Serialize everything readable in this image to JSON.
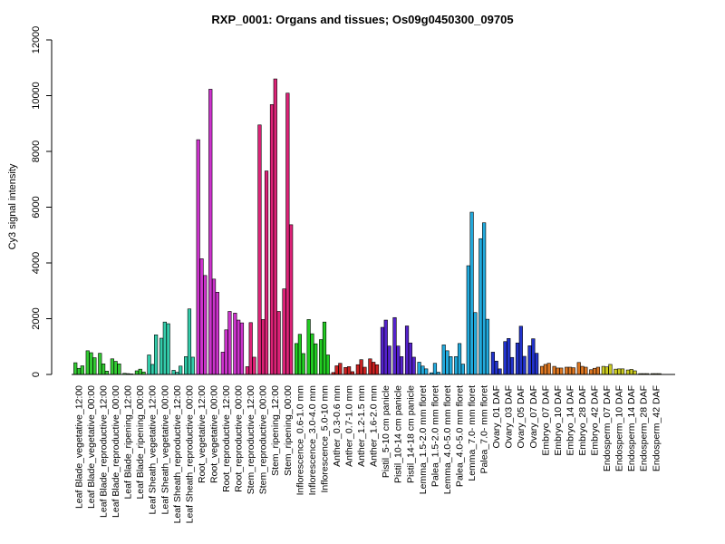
{
  "chart_data": {
    "type": "bar",
    "title": "RXP_0001: Organs and tissues; Os09g0450300_09705",
    "xlabel": "",
    "ylabel": "Cy3 signal intensity",
    "ylim": [
      0,
      12000
    ],
    "yticks": [
      0,
      2000,
      4000,
      6000,
      8000,
      10000,
      12000
    ],
    "grid": false,
    "category_labels": [
      "Leaf Blade_vegetative_12:00",
      "Leaf Blade_vegetative_00:00",
      "Leaf Blade_reproductive_12:00",
      "Leaf Blade_reproductive_00:00",
      "Leaf Blade_ripening_12:00",
      "Leaf Blade_ripening_00:00",
      "Leaf Sheath_vegetative_12:00",
      "Leaf Sheath_vegetative_00:00",
      "Leaf Sheath_reproductive_12:00",
      "Leaf Sheath_reproductive_00:00",
      "Root_vegetative_12:00",
      "Root_vegetative_00:00",
      "Root_reproductive_12:00",
      "Root_reproductive_00:00",
      "Stem_reproductive_12:00",
      "Stem_reproductive_00:00",
      "Stem_ripening_12:00",
      "Stem_ripening_00:00",
      "Inflorescence_0.6-1.0 mm",
      "Inflorescence_3.0-4.0 mm",
      "Inflorescence_5.0-10 mm",
      "Anther_0.3-0.6 mm",
      "Anther_0.7-1.0 mm",
      "Anther_1.2-1.5 mm",
      "Anther_1.6-2.0 mm",
      "Pistil_5-10 cm panicle",
      "Pistil_10-14 cm panicle",
      "Pistil_14-18 cm panicle",
      "Lemma_1.5-2.0 mm floret",
      "Palea_1.5-2.0 mm floret",
      "Lemma_4.0-5.0 mm floret",
      "Palea_4.0-5.0 mm floret",
      "Lemma_7.0- mm floret",
      "Palea_7.0- mm floret",
      "Ovary_01 DAF",
      "Ovary_03 DAF",
      "Ovary_05 DAF",
      "Ovary_07 DAF",
      "Embryo_07 DAF",
      "Embryo_10 DAF",
      "Embryo_14 DAF",
      "Embryo_28 DAF",
      "Embryo_42 DAF",
      "Endosperm_07 DAF",
      "Endosperm_10 DAF",
      "Endosperm_14 DAF",
      "Endosperm_28 DAF",
      "Endosperm_42 DAF"
    ],
    "bar_groups": [
      {
        "values": [
          420,
          220,
          310
        ],
        "color": "#33cc33"
      },
      {
        "values": [
          850,
          780,
          600
        ],
        "color": "#33cc33"
      },
      {
        "values": [
          760,
          380,
          120
        ],
        "color": "#33cc33"
      },
      {
        "values": [
          560,
          470,
          380
        ],
        "color": "#33cc33"
      },
      {
        "values": [
          40,
          30,
          20
        ],
        "color": "#33cc33"
      },
      {
        "values": [
          130,
          190,
          90
        ],
        "color": "#33cc33"
      },
      {
        "values": [
          700,
          360,
          1420
        ],
        "color": "#33ccaa"
      },
      {
        "values": [
          1300,
          1880,
          1820
        ],
        "color": "#33ccaa"
      },
      {
        "values": [
          150,
          80,
          300
        ],
        "color": "#33ccaa"
      },
      {
        "values": [
          640,
          2350,
          620
        ],
        "color": "#33ccaa"
      },
      {
        "values": [
          8420,
          4150,
          3550
        ],
        "color": "#cc33cc"
      },
      {
        "values": [
          10230,
          3420,
          2950
        ],
        "color": "#cc33cc"
      },
      {
        "values": [
          800,
          1600,
          2260
        ],
        "color": "#cc33cc"
      },
      {
        "values": [
          2200,
          1950,
          1850
        ],
        "color": "#cc33cc"
      },
      {
        "values": [
          280,
          1860,
          620
        ],
        "color": "#dd2277"
      },
      {
        "values": [
          8950,
          1970,
          7300
        ],
        "color": "#dd2277"
      },
      {
        "values": [
          9680,
          10600,
          2260
        ],
        "color": "#dd2277"
      },
      {
        "values": [
          3070,
          10090,
          5370
        ],
        "color": "#dd2277"
      },
      {
        "values": [
          1110,
          1440,
          750
        ],
        "color": "#22cc22"
      },
      {
        "values": [
          1970,
          1460,
          1100
        ],
        "color": "#22cc22"
      },
      {
        "values": [
          1250,
          1880,
          700
        ],
        "color": "#22cc22"
      },
      {
        "values": [
          70,
          310,
          400
        ],
        "color": "#cc2222"
      },
      {
        "values": [
          250,
          280,
          100
        ],
        "color": "#cc2222"
      },
      {
        "values": [
          350,
          530,
          260
        ],
        "color": "#cc2222"
      },
      {
        "values": [
          560,
          440,
          350
        ],
        "color": "#cc2222"
      },
      {
        "values": [
          1690,
          1950,
          1020
        ],
        "color": "#5522cc"
      },
      {
        "values": [
          2040,
          1020,
          640
        ],
        "color": "#5522cc"
      },
      {
        "values": [
          1740,
          1130,
          620
        ],
        "color": "#5522cc"
      },
      {
        "values": [
          440,
          300,
          200
        ],
        "color": "#22aadd"
      },
      {
        "values": [
          60,
          400,
          80
        ],
        "color": "#22aadd"
      },
      {
        "values": [
          1060,
          850,
          640
        ],
        "color": "#22aadd"
      },
      {
        "values": [
          640,
          1110,
          370
        ],
        "color": "#22aadd"
      },
      {
        "values": [
          3900,
          5820,
          2220
        ],
        "color": "#22aadd"
      },
      {
        "values": [
          4870,
          5440,
          1980
        ],
        "color": "#22aadd"
      },
      {
        "values": [
          800,
          480,
          200
        ],
        "color": "#2233cc"
      },
      {
        "values": [
          1180,
          1290,
          610
        ],
        "color": "#2233cc"
      },
      {
        "values": [
          1130,
          1730,
          650
        ],
        "color": "#2233cc"
      },
      {
        "values": [
          1030,
          1280,
          760
        ],
        "color": "#2233cc"
      },
      {
        "values": [
          290,
          360,
          400
        ],
        "color": "#dd7722"
      },
      {
        "values": [
          290,
          230,
          230
        ],
        "color": "#dd7722"
      },
      {
        "values": [
          260,
          260,
          240
        ],
        "color": "#dd7722"
      },
      {
        "values": [
          430,
          290,
          260
        ],
        "color": "#dd7722"
      },
      {
        "values": [
          170,
          220,
          260
        ],
        "color": "#dd7722"
      },
      {
        "values": [
          290,
          270,
          360
        ],
        "color": "#cccc22"
      },
      {
        "values": [
          190,
          200,
          200
        ],
        "color": "#cccc22"
      },
      {
        "values": [
          160,
          180,
          130
        ],
        "color": "#cccc22"
      },
      {
        "values": [
          30,
          30,
          30
        ],
        "color": "#cccc22"
      },
      {
        "values": [
          30,
          30,
          30
        ],
        "color": "#cccc22"
      }
    ]
  }
}
